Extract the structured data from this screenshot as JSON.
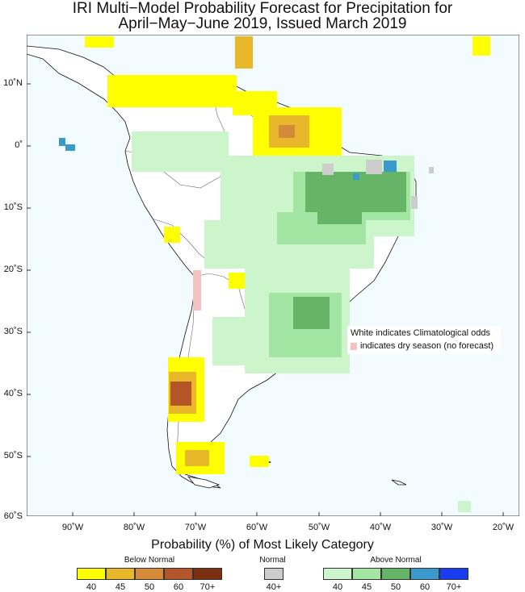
{
  "title_line1": "IRI Multi−Model Probability Forecast for Precipitation for",
  "title_line2": "April−May−June 2019, Issued March 2019",
  "lat_labels": [
    "10˚N",
    "0˚",
    "10˚S",
    "20˚S",
    "30˚S",
    "40˚S",
    "50˚S",
    "60˚S"
  ],
  "lon_labels": [
    "90˚W",
    "80˚W",
    "70˚W",
    "60˚W",
    "50˚W",
    "40˚W",
    "30˚W",
    "20˚W"
  ],
  "note": {
    "line1": "White indicates Climatological odds",
    "line2": "indicates dry season (no forecast)",
    "dry_color": "#f4c2c2"
  },
  "legend": {
    "title": "Probability (%) of Most Likely Category",
    "below": {
      "label": "Below Normal",
      "ticks": [
        "40",
        "45",
        "50",
        "60",
        "70+"
      ],
      "colors": [
        "#ffff00",
        "#e8b82a",
        "#d58a3a",
        "#b5562a",
        "#7a3010"
      ]
    },
    "normal": {
      "label": "Normal",
      "ticks": [
        "40+"
      ],
      "colors": [
        "#cccccc"
      ]
    },
    "above": {
      "label": "Above Normal",
      "ticks": [
        "40",
        "45",
        "50",
        "60",
        "70+"
      ],
      "colors": [
        "#ccf5cc",
        "#a3e6a3",
        "#66b466",
        "#3b9acc",
        "#1a3cf0"
      ]
    }
  },
  "colors": {
    "ocean": "#f2fbfd",
    "land": "#ffffff"
  }
}
